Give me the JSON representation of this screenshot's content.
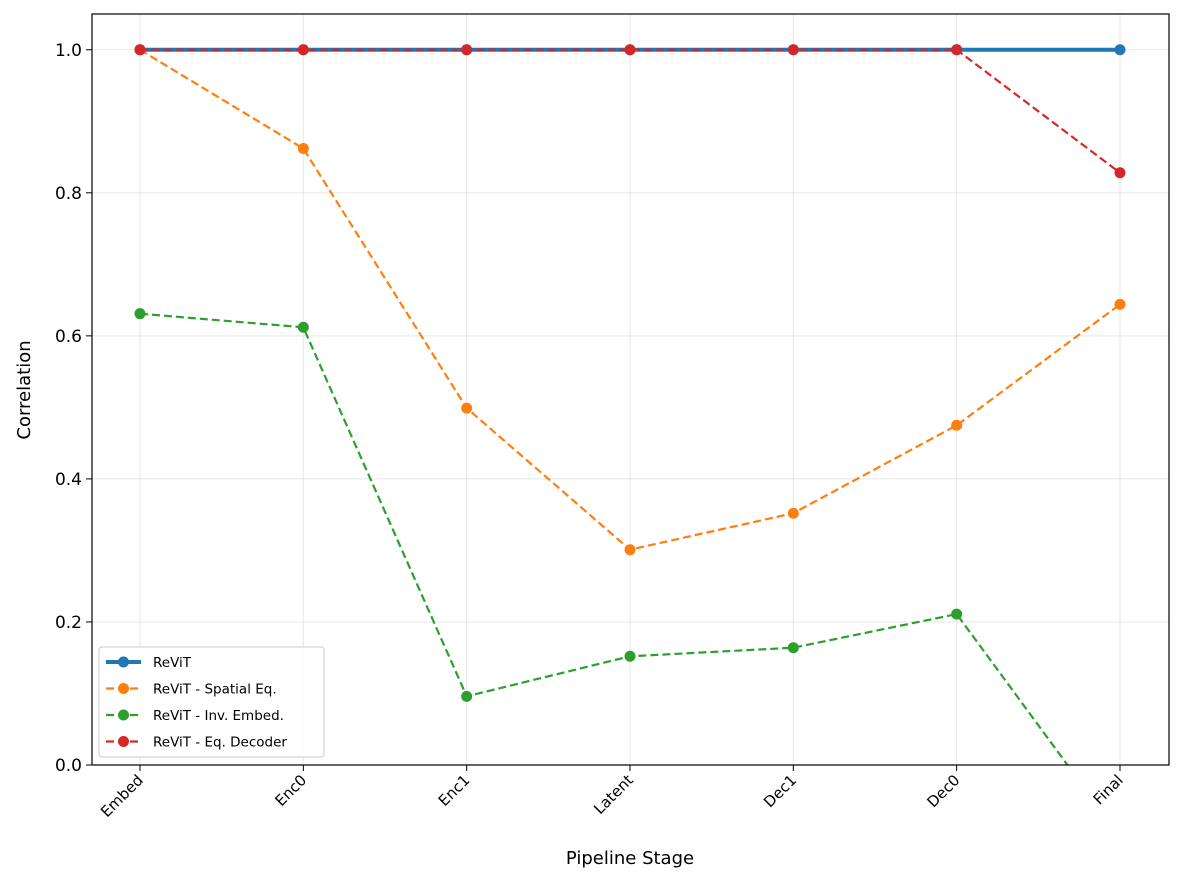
{
  "chart_data": {
    "type": "line",
    "categories": [
      "Embed",
      "Enc0",
      "Enc1",
      "Latent",
      "Dec1",
      "Dec0",
      "Final"
    ],
    "xlabel": "Pipeline Stage",
    "ylabel": "Correlation",
    "ylim": [
      0,
      1.05
    ],
    "yticks": [
      "0.0",
      "0.2",
      "0.4",
      "0.6",
      "0.8",
      "1.0"
    ],
    "grid": true,
    "legend_position": "lower-left",
    "series": [
      {
        "name": "ReViT",
        "values": [
          1.0,
          1.0,
          1.0,
          1.0,
          1.0,
          1.0,
          1.0
        ],
        "color": "#1f77b4",
        "style": "solid"
      },
      {
        "name": "ReViT - Spatial Eq.",
        "values": [
          1.0,
          0.862,
          0.499,
          0.301,
          0.352,
          0.475,
          0.644
        ],
        "color": "#ff7f0e",
        "style": "dashed"
      },
      {
        "name": "ReViT - Inv. Embed.",
        "values": [
          0.631,
          0.612,
          0.096,
          0.152,
          0.164,
          0.211,
          -0.1
        ],
        "color": "#2ca02c",
        "style": "dashed"
      },
      {
        "name": "ReViT - Eq. Decoder",
        "values": [
          1.0,
          1.0,
          1.0,
          1.0,
          1.0,
          1.0,
          0.828
        ],
        "color": "#d62728",
        "style": "dashed"
      }
    ]
  }
}
